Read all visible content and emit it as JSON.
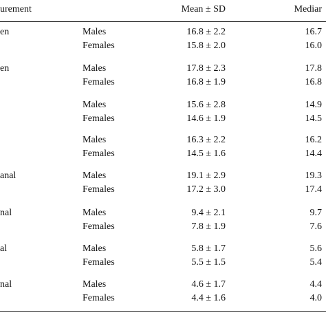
{
  "table": {
    "headers": {
      "measurement": "urement",
      "sex": "",
      "mean_sd": "Mean ± SD",
      "median": "Mediar"
    },
    "groups": [
      {
        "measurement": "en",
        "rows": [
          {
            "sex": "Males",
            "mean_sd": "16.8 ± 2.2",
            "median": "16.7"
          },
          {
            "sex": "Females",
            "mean_sd": "15.8 ± 2.0",
            "median": "16.0"
          }
        ]
      },
      {
        "measurement": "en",
        "rows": [
          {
            "sex": "Males",
            "mean_sd": "17.8 ± 2.3",
            "median": "17.8"
          },
          {
            "sex": "Females",
            "mean_sd": "16.8 ± 1.9",
            "median": "16.8"
          }
        ]
      },
      {
        "measurement": "",
        "rows": [
          {
            "sex": "Males",
            "mean_sd": "15.6 ± 2.8",
            "median": "14.9"
          },
          {
            "sex": "Females",
            "mean_sd": "14.6 ± 1.9",
            "median": "14.5"
          }
        ]
      },
      {
        "measurement": "",
        "rows": [
          {
            "sex": "Males",
            "mean_sd": "16.3 ± 2.2",
            "median": "16.2"
          },
          {
            "sex": "Females",
            "mean_sd": "14.5 ± 1.6",
            "median": "14.4"
          }
        ]
      },
      {
        "measurement": "anal",
        "rows": [
          {
            "sex": "Males",
            "mean_sd": "19.1 ± 2.9",
            "median": "19.3"
          },
          {
            "sex": "Females",
            "mean_sd": "17.2 ± 3.0",
            "median": "17.4"
          }
        ]
      },
      {
        "measurement": "nal",
        "rows": [
          {
            "sex": "Males",
            "mean_sd": "9.4 ± 2.1",
            "median": "9.7"
          },
          {
            "sex": "Females",
            "mean_sd": "7.8 ± 1.9",
            "median": "7.6"
          }
        ]
      },
      {
        "measurement": "al",
        "rows": [
          {
            "sex": "Males",
            "mean_sd": "5.8 ± 1.7",
            "median": "5.6"
          },
          {
            "sex": "Females",
            "mean_sd": "5.5 ± 1.5",
            "median": "5.4"
          }
        ]
      },
      {
        "measurement": "nal",
        "rows": [
          {
            "sex": "Males",
            "mean_sd": "4.6 ± 1.7",
            "median": "4.4"
          },
          {
            "sex": "Females",
            "mean_sd": "4.4 ± 1.6",
            "median": "4.0"
          }
        ]
      }
    ]
  }
}
